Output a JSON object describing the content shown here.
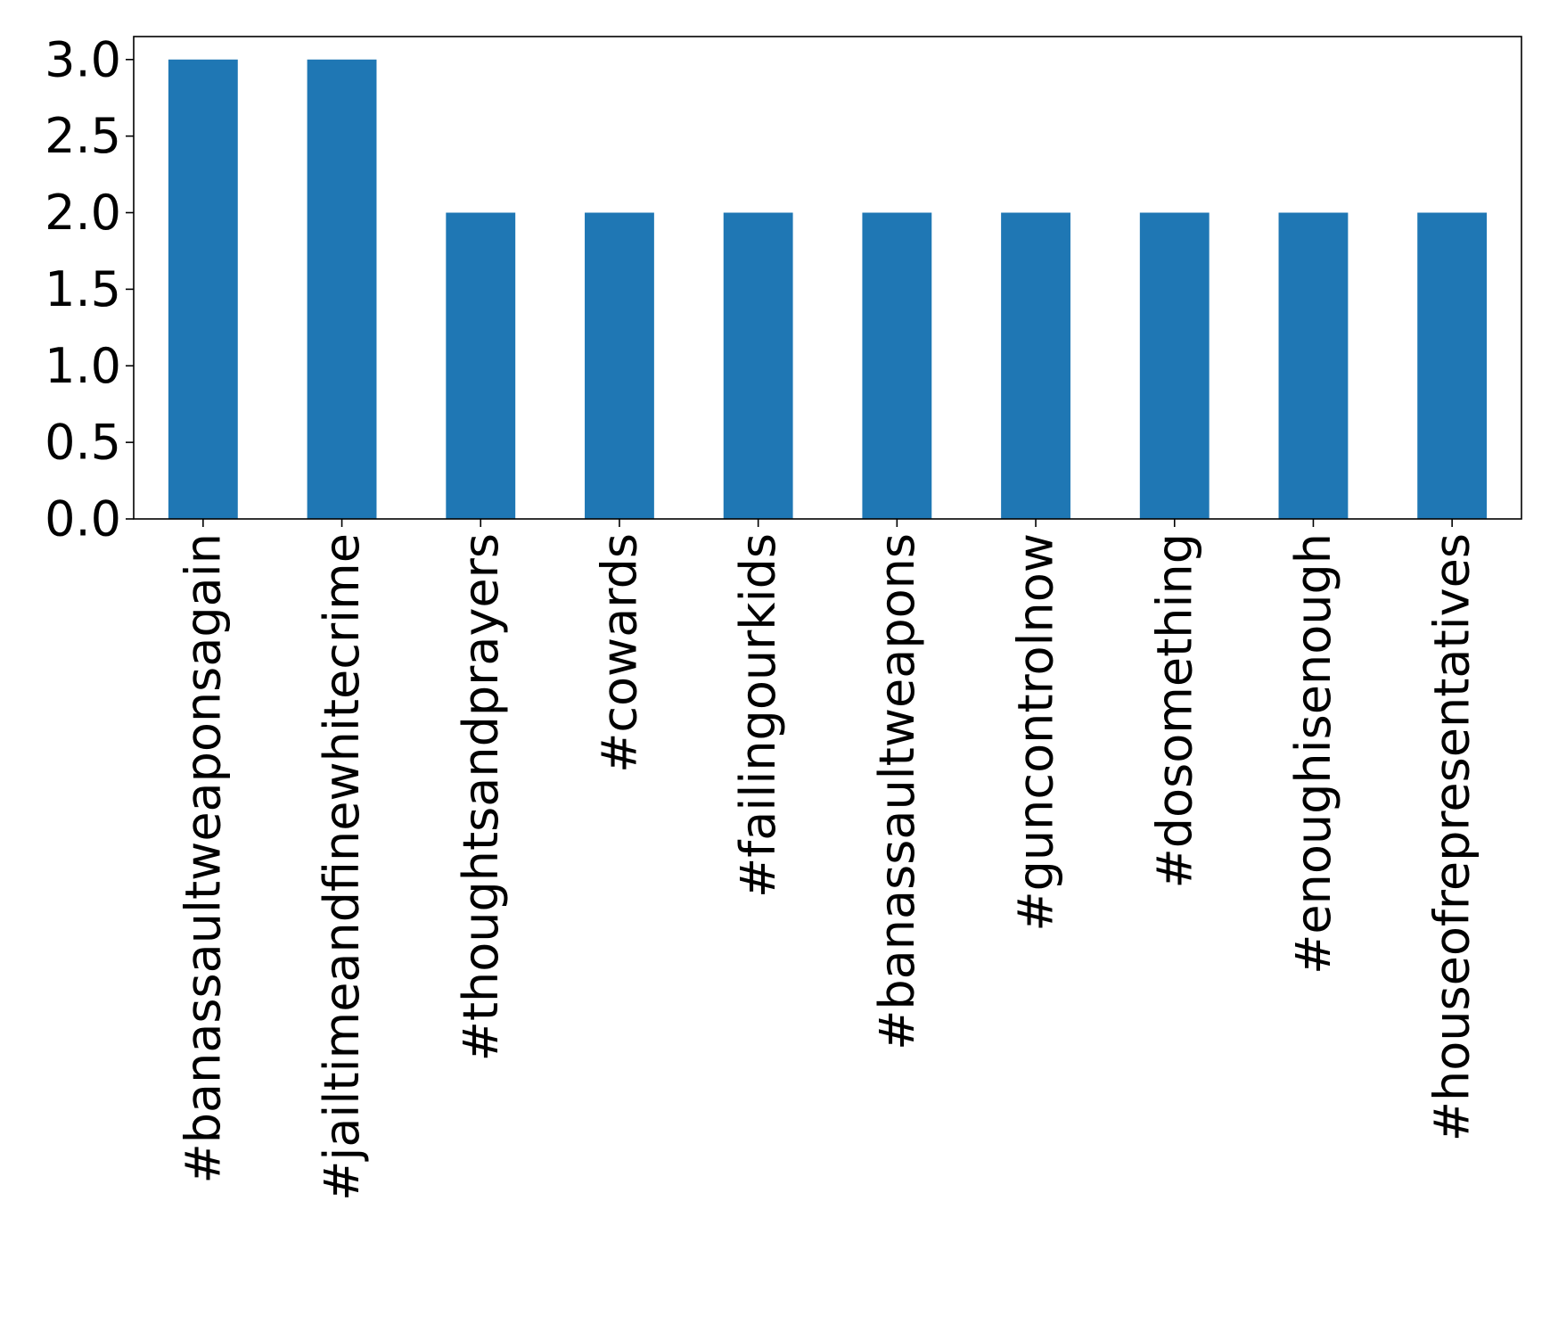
{
  "chart_data": {
    "type": "bar",
    "title": "",
    "xlabel": "",
    "ylabel": "",
    "categories": [
      "#banassaultweaponsagain",
      "#jailtimeandfinewhitecrime",
      "#thoughtsandprayers",
      "#cowards",
      "#failingourkids",
      "#banassaultweapons",
      "#guncontrolnow",
      "#dosomething",
      "#enoughisenough",
      "#houseofrepresentatives"
    ],
    "values": [
      3,
      3,
      2,
      2,
      2,
      2,
      2,
      2,
      2,
      2
    ],
    "ylim": [
      0,
      3.15
    ],
    "yticks": [
      "0.0",
      "0.5",
      "1.0",
      "1.5",
      "2.0",
      "2.5",
      "3.0"
    ],
    "grid": false,
    "legend": "none",
    "bar_color": "#1f77b4"
  }
}
